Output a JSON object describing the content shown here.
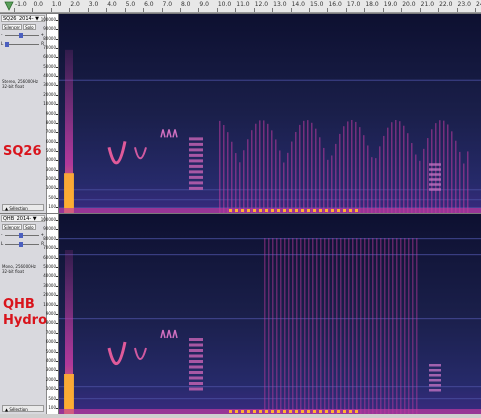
{
  "ruler": {
    "ticks": [
      "-1.0",
      "0.0",
      "1.0",
      "2.0",
      "3.0",
      "4.0",
      "5.0",
      "6.0",
      "7.0",
      "8.0",
      "9.0",
      "10.0",
      "11.0",
      "12.0",
      "13.0",
      "14.0",
      "15.0",
      "16.0",
      "17.0",
      "18.0",
      "19.0",
      "20.0",
      "21.0",
      "22.0",
      "23.0",
      "24.0"
    ]
  },
  "tracks": [
    {
      "name": "SQ26_2014-",
      "label": "SQ26",
      "label2": "",
      "mute_label": "Silencer",
      "solo_label": "Solo",
      "gain_left": "-",
      "gain_right": "+",
      "pan_left": "L",
      "pan_right": "R",
      "rate_line1": "Stereo, 256000Hz",
      "rate_line2": "32-bit float",
      "select_label": "▲ Sélection",
      "axis_labels": [
        "100000",
        "90000",
        "80000",
        "70000",
        "60000",
        "50000",
        "40000",
        "30000",
        "20000",
        "10000",
        "9000",
        "8000",
        "7000",
        "6000",
        "5000",
        "4000",
        "3000",
        "2000",
        "1000",
        "500",
        "100"
      ]
    },
    {
      "name": "QHB_2014-",
      "label": "QHB",
      "label2": "Hydro",
      "mute_label": "Silencer",
      "solo_label": "Solo",
      "gain_left": "-",
      "gain_right": "+",
      "pan_left": "L",
      "pan_right": "R",
      "rate_line1": "Mono, 256000Hz",
      "rate_line2": "32-bit float",
      "select_label": "▲ Sélection",
      "axis_labels": [
        "100000",
        "90000",
        "80000",
        "70000",
        "60000",
        "50000",
        "40000",
        "30000",
        "20000",
        "10000",
        "9000",
        "8000",
        "7000",
        "6000",
        "5000",
        "4000",
        "3000",
        "2000",
        "1000",
        "500",
        "100"
      ]
    }
  ],
  "colors": {
    "spectrogram_background": "#1a1f4a",
    "spectrogram_energy": "#c03aa0",
    "spectrogram_hot": "#ffb030",
    "label": "#d9141c"
  }
}
